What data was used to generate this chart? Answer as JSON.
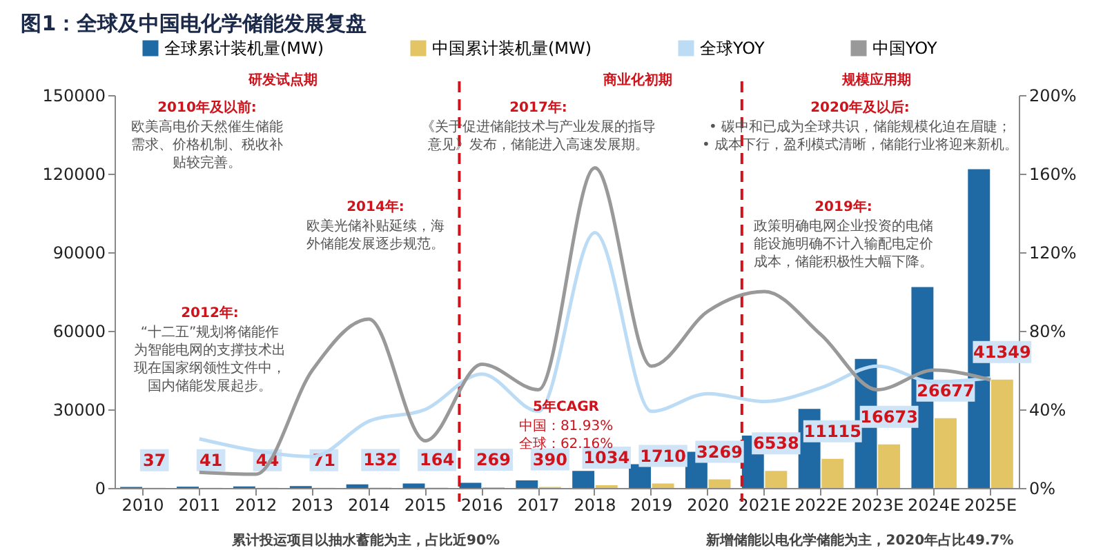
{
  "chart_data": {
    "type": "bar",
    "title": "图1：全球及中国电化学储能发展复盘",
    "categories": [
      "2010",
      "2011",
      "2012",
      "2013",
      "2014",
      "2015",
      "2016",
      "2017",
      "2018",
      "2019",
      "2020",
      "2021E",
      "2022E",
      "2023E",
      "2024E",
      "2025E"
    ],
    "series": [
      {
        "name": "全球累计装机量(MW)",
        "color": "#1f6aa5",
        "values": [
          400,
          500,
          600,
          700,
          1400,
          1700,
          2000,
          2900,
          6500,
          9100,
          13800,
          20000,
          30200,
          49300,
          76700,
          121700
        ]
      },
      {
        "name": "中国累计装机量(MW)",
        "color": "#e3c565",
        "values": [
          37,
          41,
          44,
          71,
          132,
          164,
          269,
          390,
          1034,
          1710,
          3269,
          6538,
          11115,
          16673,
          26677,
          41349
        ],
        "value_labels": [
          "37",
          "41",
          "44",
          "71",
          "132",
          "164",
          "269",
          "390",
          "1034",
          "1710",
          "3269",
          "6538",
          "11115",
          "16673",
          "26677",
          "41349"
        ]
      },
      {
        "name": "全球YOY",
        "type": "line",
        "axis": "y2",
        "color": "#bcdcf5",
        "values": [
          null,
          25,
          19,
          16,
          34,
          40,
          58,
          39,
          130,
          39,
          48,
          44,
          51,
          62,
          54,
          56
        ]
      },
      {
        "name": "中国YOY",
        "type": "line",
        "axis": "y2",
        "color": "#999999",
        "values": [
          null,
          8,
          7,
          60,
          86,
          24,
          63,
          50,
          163,
          62,
          90,
          100,
          78,
          50,
          60,
          55
        ]
      }
    ],
    "ylim": [
      0,
      150000
    ],
    "yticks": [
      0,
      30000,
      60000,
      90000,
      120000,
      150000
    ],
    "y2lim": [
      0,
      200
    ],
    "y2ticks": [
      {
        "value": 0,
        "label": "0%"
      },
      {
        "value": 40,
        "label": "40%"
      },
      {
        "value": 80,
        "label": "80%"
      },
      {
        "value": 120,
        "label": "120%"
      },
      {
        "value": 160,
        "label": "160%"
      },
      {
        "value": 200,
        "label": "200%"
      }
    ],
    "ref_lines": [
      {
        "axis": "x",
        "value": "2016",
        "color": "#d0121b",
        "line_style": "dashed"
      },
      {
        "axis": "x",
        "value": "2021E",
        "color": "#d0121b",
        "line_style": "dashed"
      }
    ],
    "annotations": [
      "研发试点期",
      "商业化初期",
      "规模应用期",
      "2010年及以前:\n欧美高电价天然催生储能需求、价格机制、税收补贴较完善。",
      "2012年:\n“十二五”规划将储能作为智能电网的支撑技术出现在国家纲领性文件中，国内储能发展起步。",
      "2014年:\n欧美光储补贴延续，海外储能发展逐步规范。",
      "2017年:\n《关于促进储能技术与产业发展的指导意见》发布，储能进入高速发展期。",
      "2019年:\n政策明确电网企业投资的电储能设施明确不计入输配电定价成本，储能积极性大幅下降。",
      "2020年及以后:\n• 碳中和已成为全球共识，储能规模化迫在眉睫；\n• 成本下行，盈利模式清晰，储能行业将迎来新机。",
      "5年CAGR\n中国：81.93%\n全球：62.16%",
      "累计投运项目以抽水蓄能为主，占比近90%",
      "新增储能以电化学储能为主，2020年占比49.7%"
    ],
    "legend": "top",
    "grid": false
  }
}
